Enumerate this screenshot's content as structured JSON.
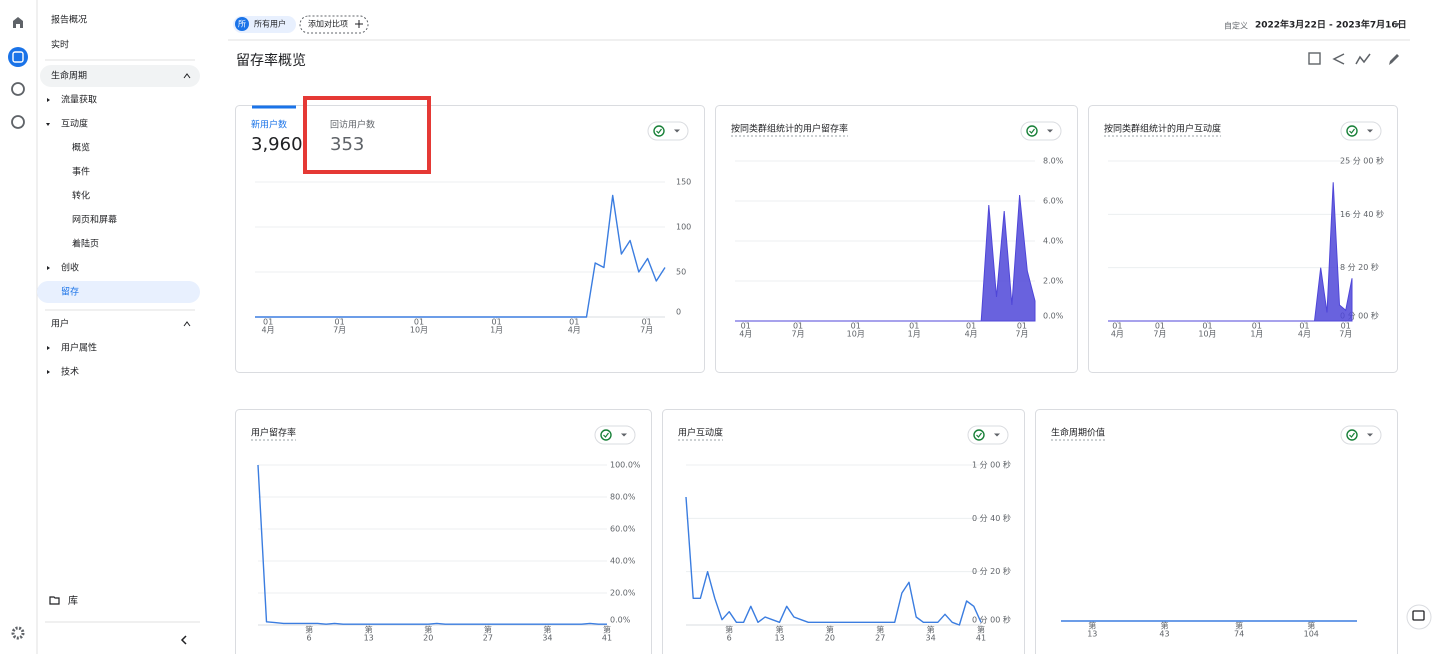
{
  "sidebar": {
    "items": [
      {
        "label": "报告概况",
        "level": 0
      },
      {
        "label": "实时",
        "level": 0
      },
      {
        "label": "生命周期",
        "level": "section",
        "expanded": true
      },
      {
        "label": "流量获取",
        "level": 1,
        "expanded": false
      },
      {
        "label": "互动度",
        "level": 1,
        "expanded": true
      },
      {
        "label": "概览",
        "level": 2
      },
      {
        "label": "事件",
        "level": 2
      },
      {
        "label": "转化",
        "level": 2
      },
      {
        "label": "网页和屏幕",
        "level": 2
      },
      {
        "label": "着陆页",
        "level": 2
      },
      {
        "label": "创收",
        "level": 1,
        "expanded": false
      },
      {
        "label": "留存",
        "level": 1,
        "selected": true
      },
      {
        "label": "用户",
        "level": "section",
        "expanded": true
      },
      {
        "label": "用户属性",
        "level": 1,
        "expanded": false
      },
      {
        "label": "技术",
        "level": 1,
        "expanded": false
      }
    ],
    "library": "库"
  },
  "header": {
    "avatar": "所",
    "segment": "所有用户",
    "add_comparison": "添加对比项",
    "date_prefix": "自定义",
    "date_range": "2022年3月22日 - 2023年7月16日",
    "title": "留存率概览"
  },
  "chart_data": [
    {
      "type": "line",
      "metrics": [
        {
          "name": "新用户数",
          "value": "3,960",
          "active": true
        },
        {
          "name": "回访用户数",
          "value": "353",
          "active": false
        }
      ],
      "color": "#3b7de0",
      "values": [
        0,
        0,
        0,
        0,
        0,
        0,
        0,
        0,
        0,
        0,
        0,
        0,
        0,
        0,
        0,
        0,
        0,
        0,
        0,
        0,
        0,
        0,
        0,
        0,
        0,
        0,
        0,
        0,
        0,
        0,
        0,
        0,
        0,
        0,
        0,
        0,
        0,
        0,
        0,
        60,
        55,
        135,
        70,
        85,
        50,
        65,
        40,
        55
      ],
      "xlim": [
        0,
        47
      ],
      "ylim": [
        0,
        150
      ],
      "yticks": [
        150,
        100,
        50,
        0
      ],
      "grid": true,
      "xticks": [
        {
          "value": 1.5,
          "day": "01",
          "month": "4月"
        },
        {
          "value": 9.7,
          "day": "01",
          "month": "7月"
        },
        {
          "value": 18.8,
          "day": "01",
          "month": "10月"
        },
        {
          "value": 27.7,
          "day": "01",
          "month": "1月"
        },
        {
          "value": 36.6,
          "day": "01",
          "month": "4月"
        },
        {
          "value": 44.9,
          "day": "01",
          "month": "7月"
        }
      ]
    },
    {
      "type": "area",
      "title": "按同类群组统计的用户留存率",
      "color": "#4f46d8",
      "values": [
        0,
        0,
        0,
        0,
        0,
        0,
        0,
        0,
        0,
        0,
        0,
        0,
        0,
        0,
        0,
        0,
        0,
        0,
        0,
        0,
        0,
        0,
        0,
        0,
        0,
        0,
        0,
        0,
        0,
        0,
        0,
        0,
        0,
        5.8,
        1.2,
        5.5,
        0.8,
        6.3,
        2.5,
        1.0
      ],
      "xlim": [
        0,
        39
      ],
      "ylim": [
        0,
        8
      ],
      "grid": true,
      "yticks": [
        {
          "value": 8,
          "label": "8.0%"
        },
        {
          "value": 6,
          "label": "6.0%"
        },
        {
          "value": 4,
          "label": "4.0%"
        },
        {
          "value": 2,
          "label": "2.0%"
        },
        {
          "value": 0,
          "label": "0.0%"
        }
      ],
      "xticks": [
        {
          "value": 1.4,
          "day": "01",
          "month": "4月"
        },
        {
          "value": 8.2,
          "day": "01",
          "month": "7月"
        },
        {
          "value": 15.7,
          "day": "01",
          "month": "10月"
        },
        {
          "value": 23.3,
          "day": "01",
          "month": "1月"
        },
        {
          "value": 30.7,
          "day": "01",
          "month": "4月"
        },
        {
          "value": 37.3,
          "day": "01",
          "month": "7月"
        }
      ]
    },
    {
      "type": "area",
      "title": "按同类群组统计的用户互动度",
      "color": "#4f46d8",
      "values": [
        0,
        0,
        0,
        0,
        0,
        0,
        0,
        0,
        0,
        0,
        0,
        0,
        0,
        0,
        0,
        0,
        0,
        0,
        0,
        0,
        0,
        0,
        0,
        0,
        0,
        0,
        0,
        0,
        0,
        0,
        0,
        0,
        0,
        0,
        500,
        80,
        1300,
        150,
        100,
        400
      ],
      "xlim": [
        0,
        39
      ],
      "ylim": [
        0,
        1500
      ],
      "grid": true,
      "yticks": [
        {
          "value": 1500,
          "label": "25 分 00 秒"
        },
        {
          "value": 1000,
          "label": "16 分 40 秒"
        },
        {
          "value": 500,
          "label": "8 分 20 秒"
        },
        {
          "value": 0,
          "label": "0 分 00 秒"
        }
      ],
      "xticks": [
        {
          "value": 1.5,
          "day": "01",
          "month": "4月"
        },
        {
          "value": 8.3,
          "day": "01",
          "month": "7月"
        },
        {
          "value": 15.9,
          "day": "01",
          "month": "10月"
        },
        {
          "value": 23.8,
          "day": "01",
          "month": "1月"
        },
        {
          "value": 31.4,
          "day": "01",
          "month": "4月"
        },
        {
          "value": 38,
          "day": "01",
          "month": "7月"
        }
      ]
    },
    {
      "type": "line",
      "title": "用户留存率",
      "color": "#3b7de0",
      "values": [
        100,
        2,
        1.5,
        1,
        1,
        1,
        1,
        1,
        0.5,
        1,
        0.5,
        0.5,
        0.5,
        0.5,
        0.5,
        0.5,
        0.5,
        0.5,
        0.5,
        0.5,
        0.5,
        1,
        0.5,
        0.5,
        0.5,
        0.5,
        0.5,
        0.5,
        0.5,
        0.5,
        0.5,
        0.5,
        0.5,
        0.5,
        0.5,
        0.5,
        0.5,
        0.5,
        0.5,
        1,
        0.5,
        0.5
      ],
      "xlim": [
        0,
        41
      ],
      "ylim": [
        0,
        100
      ],
      "grid": true,
      "yticks": [
        {
          "value": 100,
          "label": "100.0%"
        },
        {
          "value": 80,
          "label": "80.0%"
        },
        {
          "value": 60,
          "label": "60.0%"
        },
        {
          "value": 40,
          "label": "40.0%"
        },
        {
          "value": 20,
          "label": "20.0%"
        },
        {
          "value": 0,
          "label": "0.0%"
        }
      ],
      "xticks": [
        {
          "value": 6,
          "label": "第"
        },
        {
          "value": 13,
          "label": "第"
        },
        {
          "value": 20,
          "label": "第"
        },
        {
          "value": 27,
          "label": "第"
        },
        {
          "value": 34,
          "label": "第"
        },
        {
          "value": 41,
          "label": "第"
        }
      ]
    },
    {
      "type": "line",
      "title": "用户互动度",
      "color": "#3b7de0",
      "values": [
        48,
        10,
        10,
        20,
        10,
        2,
        5,
        1,
        1,
        7,
        1,
        3,
        2,
        1,
        7,
        3,
        2,
        1,
        1,
        1,
        1,
        1,
        1,
        1,
        1,
        1,
        1,
        1,
        1,
        1,
        12,
        16,
        3,
        1,
        1,
        1,
        4,
        1,
        0,
        9,
        7,
        1
      ],
      "xlim": [
        0,
        41
      ],
      "ylim": [
        0,
        60
      ],
      "grid": true,
      "yticks": [
        {
          "value": 60,
          "label": "1 分 00 秒"
        },
        {
          "value": 40,
          "label": "0 分 40 秒"
        },
        {
          "value": 20,
          "label": "0 分 20 秒"
        },
        {
          "value": 0,
          "label": "0 分 00 秒"
        }
      ],
      "xticks": [
        {
          "value": 6,
          "label": "第"
        },
        {
          "value": 13,
          "label": "第"
        },
        {
          "value": 20,
          "label": "第"
        },
        {
          "value": 27,
          "label": "第"
        },
        {
          "value": 34,
          "label": "第"
        },
        {
          "value": 41,
          "label": "第"
        }
      ]
    },
    {
      "type": "line",
      "title": "生命周期价值",
      "color": "#3b7de0",
      "values": [
        0,
        0,
        0,
        0,
        0,
        0,
        0,
        0,
        0,
        0,
        0,
        0,
        0,
        0,
        0,
        0,
        0,
        0,
        0,
        0,
        0,
        0,
        0,
        0,
        0,
        0,
        0,
        0,
        0,
        0,
        0,
        0,
        0,
        0,
        0,
        0,
        0,
        0,
        0,
        0,
        0,
        0,
        0,
        0,
        0,
        0,
        0,
        0,
        0,
        0,
        0,
        0,
        0,
        0,
        0,
        0,
        0,
        0,
        0,
        0,
        0,
        0,
        0,
        0,
        0,
        0,
        0,
        0,
        0,
        0,
        0,
        0,
        0,
        0,
        0,
        0,
        0,
        0,
        0,
        0,
        0,
        0,
        0,
        0,
        0,
        0,
        0,
        0,
        0,
        0,
        0,
        0,
        0,
        0,
        0,
        0,
        0,
        0,
        0,
        0,
        0,
        0,
        0,
        0,
        0,
        0,
        0,
        0,
        0,
        0,
        0,
        0,
        0,
        0,
        0,
        0,
        0,
        0,
        0,
        0,
        0,
        0,
        0,
        0
      ],
      "xlim": [
        0,
        123
      ],
      "ylim": [
        0,
        1
      ],
      "xticks": [
        {
          "value": 13,
          "label": "第"
        },
        {
          "value": 43,
          "label": "第"
        },
        {
          "value": 74,
          "label": "第"
        },
        {
          "value": 104,
          "label": "第"
        }
      ]
    }
  ]
}
